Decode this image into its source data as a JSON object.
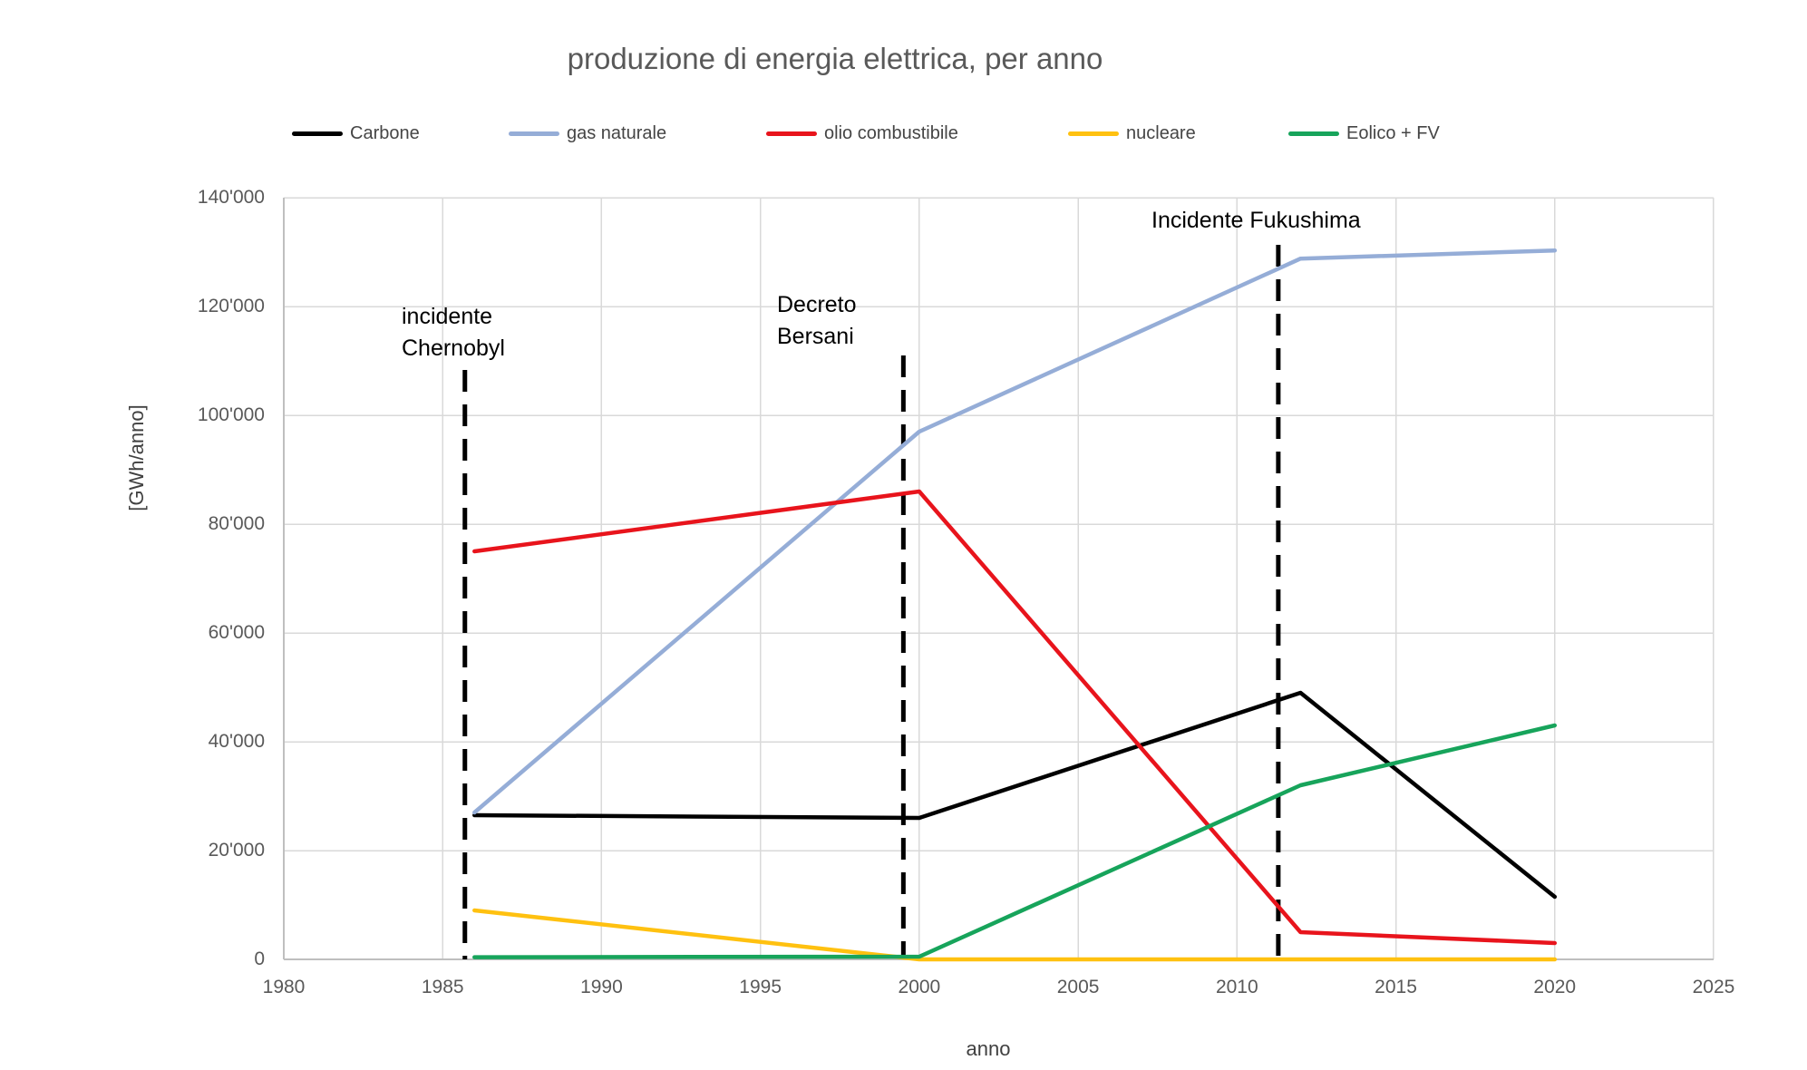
{
  "title": "produzione di energia elettrica, per anno",
  "axes": {
    "x_label": "anno",
    "y_label": "[GWh/anno]",
    "x_tick_labels": [
      "1980",
      "1985",
      "1990",
      "1995",
      "2000",
      "2005",
      "2010",
      "2015",
      "2020",
      "2025"
    ],
    "y_tick_labels": [
      "0",
      "20'000",
      "40'000",
      "60'000",
      "80'000",
      "100'000",
      "120'000",
      "140'000"
    ]
  },
  "colors": {
    "gridline": "#D9D9D9",
    "axis_line": "#BFBFBF",
    "tick_text": "#595959",
    "title_text": "#595959",
    "annotation_line": "#000000"
  },
  "chart_data": {
    "type": "line",
    "title": "produzione di energia elettrica, per anno",
    "xlabel": "anno",
    "ylabel": "[GWh/anno]",
    "xlim": [
      1980,
      2025
    ],
    "ylim": [
      0,
      140000
    ],
    "x_ticks": [
      1980,
      1985,
      1990,
      1995,
      2000,
      2005,
      2010,
      2015,
      2020,
      2025
    ],
    "y_ticks": [
      0,
      20000,
      40000,
      60000,
      80000,
      100000,
      120000,
      140000
    ],
    "grid": true,
    "legend_position": "top",
    "x": [
      1986,
      2000,
      2012,
      2020
    ],
    "series": [
      {
        "name": "Carbone",
        "color": "#000000",
        "values": [
          26500,
          26000,
          49000,
          11500
        ]
      },
      {
        "name": "gas naturale",
        "color": "#95ADD7",
        "values": [
          27000,
          97000,
          128800,
          130300
        ]
      },
      {
        "name": "olio combustibile",
        "color": "#E8141C",
        "values": [
          75000,
          86000,
          5000,
          3000
        ]
      },
      {
        "name": "nucleare",
        "color": "#FFC110",
        "values": [
          9000,
          0,
          0,
          0
        ]
      },
      {
        "name": "Eolico + FV",
        "color": "#17A45B",
        "values": [
          400,
          500,
          32000,
          43000
        ]
      }
    ],
    "events": [
      {
        "lines": [
          "incidente",
          "Chernobyl"
        ],
        "line_year": 1985.7
      },
      {
        "lines": [
          "Decreto",
          "Bersani"
        ],
        "line_year": 1999.5
      },
      {
        "lines": [
          "Incidente Fukushima"
        ],
        "line_year": 2011.3
      }
    ]
  }
}
